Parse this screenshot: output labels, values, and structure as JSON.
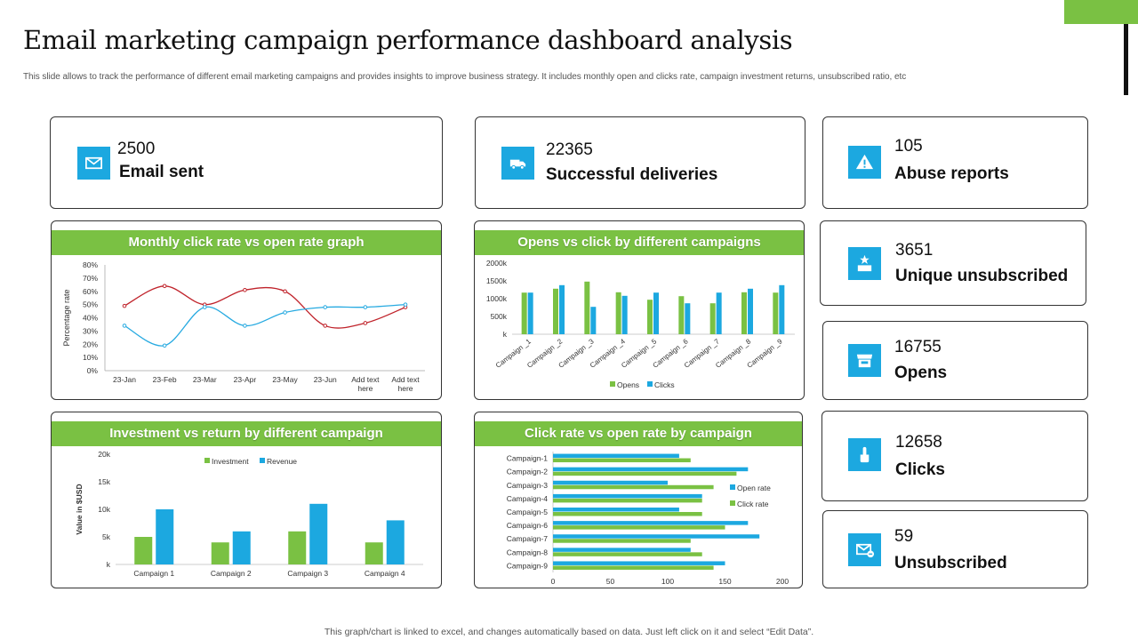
{
  "header": {
    "title": "Email marketing campaign performance dashboard analysis",
    "subtitle": "This slide allows to track the performance of different email marketing campaigns and provides insights to improve business strategy. It includes monthly open and clicks rate, campaign investment returns, unsubscribed ratio, etc"
  },
  "footer": {
    "note": "This graph/chart is linked to excel,  and changes automatically based on data. Just left click on it and select “Edit Data”."
  },
  "kpis": {
    "email_sent": {
      "value": "2500",
      "label": "Email sent",
      "icon": "envelope-icon"
    },
    "deliveries": {
      "value": "22365",
      "label": "Successful deliveries",
      "icon": "delivery-truck-icon"
    },
    "abuse": {
      "value": "105",
      "label": "Abuse reports",
      "icon": "warning-icon"
    },
    "unique_unsub": {
      "value": "3651",
      "label": "Unique unsubscribed",
      "icon": "store-icon"
    },
    "opens": {
      "value": "16755",
      "label": "Opens",
      "icon": "open-shop-icon"
    },
    "clicks": {
      "value": "12658",
      "label": "Clicks",
      "icon": "pointer-hand-icon"
    },
    "unsubscribed": {
      "value": "59",
      "label": "Unsubscribed",
      "icon": "envelope-remove-icon"
    }
  },
  "colors": {
    "accent_green": "#7ac143",
    "accent_blue": "#1ca8e0",
    "line_red": "#c0232b",
    "line_blue": "#27aae1"
  },
  "chart_data": [
    {
      "type": "line",
      "title": "Monthly click rate vs open rate graph",
      "ylabel": "Percentage rate",
      "categories": [
        "23-Jan",
        "23-Feb",
        "23-Mar",
        "23-Apr",
        "23-May",
        "23-Jun",
        "Add text here",
        "Add text here"
      ],
      "yticks": [
        "0%",
        "10%",
        "20%",
        "30%",
        "40%",
        "50%",
        "60%",
        "70%",
        "80%"
      ],
      "ylim": [
        0,
        80
      ],
      "series": [
        {
          "values": [
            49,
            64,
            50,
            61,
            60,
            34,
            36,
            48
          ]
        },
        {
          "values": [
            34,
            19,
            48,
            34,
            44,
            48,
            48,
            50
          ]
        }
      ]
    },
    {
      "type": "bar",
      "title": "Opens vs click by different campaigns",
      "categories": [
        "Campaign _1",
        "Campaign _2",
        "Campaign _3",
        "Campaign _4",
        "Campaign _5",
        "Campaign _6",
        "Campaign _7",
        "Campaign _8",
        "Campaign _9"
      ],
      "yticks": [
        "k",
        "500k",
        "1000k",
        "1500k",
        "2000k"
      ],
      "ylim": [
        0,
        2000
      ],
      "series": [
        {
          "name": "Opens",
          "values": [
            1170,
            1280,
            1480,
            1180,
            970,
            1070,
            870,
            1180,
            1170
          ]
        },
        {
          "name": "Clicks",
          "values": [
            1170,
            1380,
            770,
            1080,
            1170,
            870,
            1170,
            1280,
            1380
          ]
        }
      ],
      "legend": "bottom"
    },
    {
      "type": "bar",
      "title": "Investment vs return by different  campaign",
      "ylabel": "Value in $USD",
      "categories": [
        "Campaign 1",
        "Campaign 2",
        "Campaign 3",
        "Campaign 4"
      ],
      "yticks": [
        "k",
        "5k",
        "10k",
        "15k",
        "20k"
      ],
      "ylim": [
        0,
        20
      ],
      "series": [
        {
          "name": "Investment",
          "values": [
            5,
            4,
            6,
            4
          ]
        },
        {
          "name": "Revenue",
          "values": [
            10,
            6,
            11,
            8
          ]
        }
      ],
      "legend": "top"
    },
    {
      "type": "bar",
      "orientation": "horizontal",
      "title": "Click rate vs open rate by campaign",
      "categories": [
        "Campaign-1",
        "Campaign-2",
        "Campaign-3",
        "Campaign-4",
        "Campaign-5",
        "Campaign-6",
        "Campaign-7",
        "Campaign-8",
        "Campaign-9"
      ],
      "xticks": [
        "0",
        "50",
        "100",
        "150",
        "200"
      ],
      "xlim": [
        0,
        200
      ],
      "series": [
        {
          "name": "Open rate",
          "values": [
            110,
            170,
            100,
            130,
            110,
            170,
            180,
            120,
            150
          ]
        },
        {
          "name": "Click rate",
          "values": [
            120,
            160,
            140,
            130,
            130,
            150,
            120,
            130,
            140
          ]
        }
      ],
      "legend": "right"
    }
  ]
}
